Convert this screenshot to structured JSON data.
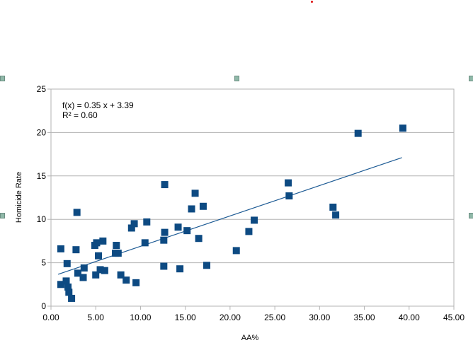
{
  "chart_data": {
    "type": "scatter",
    "xlabel": "AA%",
    "ylabel": "Homicide Rate",
    "xlim": [
      0,
      45
    ],
    "ylim": [
      0,
      25
    ],
    "x_ticks": [
      "0.00",
      "5.00",
      "10.00",
      "15.00",
      "20.00",
      "25.00",
      "30.00",
      "35.00",
      "40.00",
      "45.00"
    ],
    "y_ticks": [
      "0",
      "5",
      "10",
      "15",
      "20",
      "25"
    ],
    "grid": "horizontal",
    "marker_color": "#0d4a82",
    "trendline_color": "#1c5a94",
    "trendline": {
      "slope": 0.35,
      "intercept": 3.39,
      "x_range": [
        0.8,
        39.2
      ]
    },
    "equation": "f(x) = 0.35 x + 3.39",
    "r_squared": "R² = 0.60",
    "points": [
      [
        1.1,
        6.6
      ],
      [
        1.1,
        2.5
      ],
      [
        1.7,
        2.9
      ],
      [
        1.8,
        4.9
      ],
      [
        1.9,
        2.2
      ],
      [
        2.0,
        1.6
      ],
      [
        2.3,
        0.9
      ],
      [
        2.8,
        6.5
      ],
      [
        2.9,
        10.8
      ],
      [
        3.0,
        3.8
      ],
      [
        3.6,
        3.3
      ],
      [
        3.7,
        4.4
      ],
      [
        4.9,
        7.0
      ],
      [
        5.0,
        3.6
      ],
      [
        5.1,
        7.3
      ],
      [
        5.3,
        5.8
      ],
      [
        5.5,
        4.2
      ],
      [
        5.8,
        7.5
      ],
      [
        6.0,
        4.1
      ],
      [
        7.2,
        6.1
      ],
      [
        7.3,
        7.0
      ],
      [
        7.5,
        6.1
      ],
      [
        7.8,
        3.6
      ],
      [
        8.4,
        3.0
      ],
      [
        9.0,
        9.0
      ],
      [
        9.3,
        9.5
      ],
      [
        9.5,
        2.7
      ],
      [
        10.5,
        7.3
      ],
      [
        10.7,
        9.7
      ],
      [
        12.6,
        4.6
      ],
      [
        12.6,
        7.6
      ],
      [
        12.7,
        8.5
      ],
      [
        12.7,
        14.0
      ],
      [
        14.2,
        9.1
      ],
      [
        14.4,
        4.3
      ],
      [
        15.2,
        8.7
      ],
      [
        15.7,
        11.2
      ],
      [
        16.1,
        13.0
      ],
      [
        16.5,
        7.8
      ],
      [
        17.0,
        11.5
      ],
      [
        17.4,
        4.7
      ],
      [
        20.7,
        6.4
      ],
      [
        22.1,
        8.6
      ],
      [
        22.7,
        9.9
      ],
      [
        26.5,
        14.2
      ],
      [
        26.6,
        12.7
      ],
      [
        31.5,
        11.4
      ],
      [
        31.8,
        10.5
      ],
      [
        34.3,
        19.9
      ],
      [
        39.3,
        20.5
      ]
    ]
  }
}
